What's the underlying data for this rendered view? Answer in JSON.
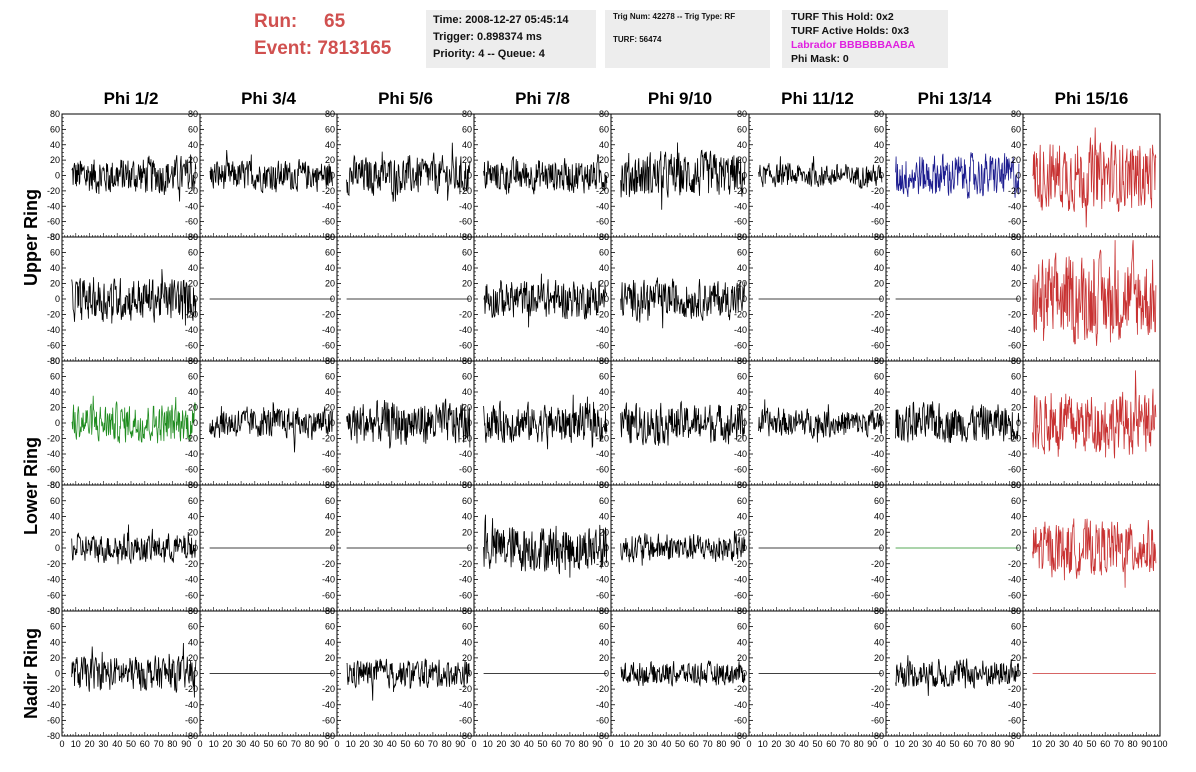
{
  "header": {
    "run_label": "Run:",
    "run_value": "65",
    "event_label": "Event:",
    "event_value": "7813165",
    "time": "Time: 2008-12-27 05:45:14",
    "trigger": "Trigger: 0.898374 ms",
    "priority": "Priority: 4 -- Queue: 4",
    "trig_num": "Trig Num: 42278 -- Trig Type: RF",
    "turf": "TURF: 56474",
    "turf_hold": "TURF This Hold: 0x2",
    "turf_active": "TURF Active Holds: 0x3",
    "labrador": "Labrador BBBBBBAABA",
    "phi_mask": "Phi Mask: 0"
  },
  "colors": {
    "header_red": "#d0504f",
    "labrador_magenta": "#e020e0",
    "info_box_bg": "#ededed",
    "trace_black": "#000000",
    "trace_blue": "#1c1c8f",
    "trace_green": "#1f8c1f",
    "trace_red": "#c83232"
  },
  "chart_data": {
    "type": "line",
    "columns": [
      "Phi 1/2",
      "Phi 3/4",
      "Phi 5/6",
      "Phi 7/8",
      "Phi 9/10",
      "Phi 11/12",
      "Phi 13/14",
      "Phi 15/16"
    ],
    "row_labels": [
      "Upper Ring",
      "Lower Ring",
      "Nadir Ring"
    ],
    "xlim": [
      0,
      100
    ],
    "ylim": [
      -80,
      80
    ],
    "x_ticks": [
      0,
      10,
      20,
      30,
      40,
      50,
      60,
      70,
      80,
      90
    ],
    "x_tick_labels": [
      "0",
      "10",
      "20",
      "30",
      "40",
      "50",
      "60",
      "70",
      "80",
      "90"
    ],
    "last_column_x_tick_labels": [
      "10",
      "20",
      "30",
      "40",
      "50",
      "60",
      "70",
      "80",
      "90",
      "100"
    ],
    "y_ticks": [
      80,
      60,
      40,
      20,
      0,
      -20,
      -40,
      -60,
      -80
    ],
    "y_tick_labels": [
      "80",
      "60",
      "40",
      "20",
      "0",
      "-20",
      "-40",
      "-60",
      "-80"
    ],
    "waveform_amplitudes": [
      [
        25,
        20,
        25,
        22,
        30,
        15,
        28,
        45
      ],
      [
        28,
        0,
        0,
        25,
        25,
        0,
        0,
        55
      ],
      [
        25,
        20,
        28,
        25,
        25,
        18,
        25,
        40
      ],
      [
        18,
        0,
        0,
        30,
        18,
        0,
        0,
        35
      ],
      [
        22,
        0,
        18,
        0,
        15,
        0,
        18,
        0
      ]
    ],
    "waveform_colors": [
      [
        "black",
        "black",
        "black",
        "black",
        "black",
        "black",
        "blue",
        "red"
      ],
      [
        "black",
        "black",
        "black",
        "black",
        "black",
        "black",
        "black",
        "red"
      ],
      [
        "green",
        "black",
        "black",
        "black",
        "black",
        "black",
        "black",
        "red"
      ],
      [
        "black",
        "black",
        "black",
        "black",
        "black",
        "black",
        "green",
        "red"
      ],
      [
        "black",
        "black",
        "black",
        "black",
        "black",
        "black",
        "black",
        "red"
      ]
    ]
  }
}
